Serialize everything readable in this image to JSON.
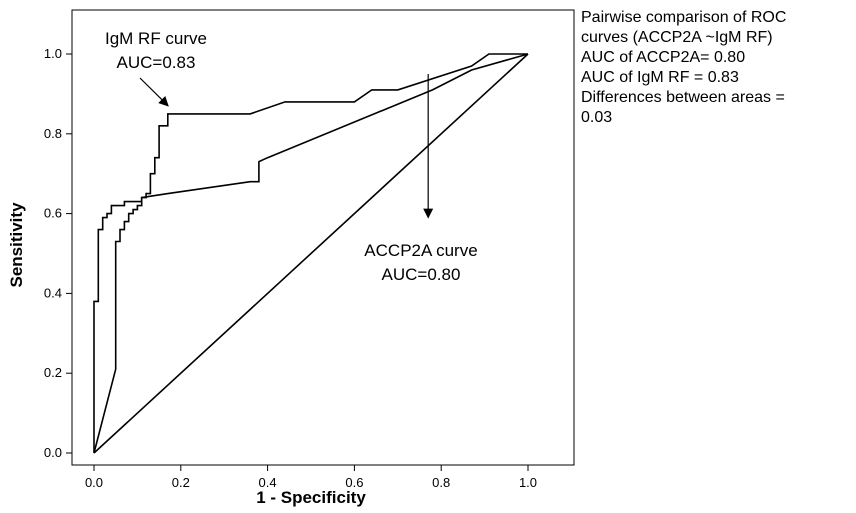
{
  "chart_data": {
    "type": "line",
    "xlabel": "1 - Specificity",
    "ylabel": "Sensitivity",
    "xlim": [
      0.0,
      1.0
    ],
    "ylim": [
      0.0,
      1.0
    ],
    "grid": false,
    "x_ticks": [
      "0.0",
      "0.2",
      "0.4",
      "0.6",
      "0.8",
      "1.0"
    ],
    "y_ticks": [
      "0.0",
      "0.2",
      "0.4",
      "0.6",
      "0.8",
      "1.0"
    ],
    "series": [
      {
        "name": "IgM RF curve",
        "x": [
          0.0,
          0.0,
          0.01,
          0.01,
          0.02,
          0.02,
          0.03,
          0.03,
          0.04,
          0.04,
          0.05,
          0.05,
          0.07,
          0.07,
          0.11,
          0.11,
          0.12,
          0.12,
          0.13,
          0.13,
          0.14,
          0.14,
          0.15,
          0.15,
          0.17,
          0.17,
          0.36,
          0.44,
          0.6,
          0.64,
          0.7,
          0.87,
          0.91,
          1.0
        ],
        "y": [
          0.0,
          0.38,
          0.38,
          0.56,
          0.56,
          0.59,
          0.59,
          0.6,
          0.6,
          0.62,
          0.62,
          0.62,
          0.62,
          0.63,
          0.63,
          0.64,
          0.64,
          0.65,
          0.65,
          0.7,
          0.7,
          0.74,
          0.74,
          0.82,
          0.82,
          0.85,
          0.85,
          0.88,
          0.88,
          0.91,
          0.91,
          0.97,
          1.0,
          1.0
        ]
      },
      {
        "name": "ACCP2A curve",
        "x": [
          0.0,
          0.05,
          0.05,
          0.06,
          0.06,
          0.07,
          0.07,
          0.08,
          0.08,
          0.09,
          0.09,
          0.1,
          0.1,
          0.11,
          0.11,
          0.17,
          0.36,
          0.38,
          0.38,
          0.4,
          0.78,
          0.87,
          1.0
        ],
        "y": [
          0.0,
          0.21,
          0.53,
          0.53,
          0.56,
          0.56,
          0.58,
          0.58,
          0.6,
          0.6,
          0.61,
          0.61,
          0.62,
          0.62,
          0.64,
          0.65,
          0.68,
          0.68,
          0.73,
          0.74,
          0.91,
          0.96,
          1.0
        ]
      },
      {
        "name": "reference line",
        "x": [
          0.0,
          1.0
        ],
        "y": [
          0.0,
          1.0
        ]
      }
    ],
    "annotations": [
      {
        "lines": [
          "IgM RF curve",
          "AUC=0.83"
        ],
        "target": [
          0.18,
          0.86
        ]
      },
      {
        "lines": [
          "ACCP2A curve",
          "AUC=0.80"
        ],
        "from": [
          0.77,
          0.95
        ],
        "target": [
          0.77,
          0.59
        ]
      }
    ]
  },
  "side_note": {
    "lines": [
      "Pairwise comparison of ROC",
      "curves (ACCP2A ~IgM RF)",
      "AUC of ACCP2A= 0.80",
      "AUC of IgM RF = 0.83",
      "Differences between areas =",
      "0.03"
    ]
  }
}
